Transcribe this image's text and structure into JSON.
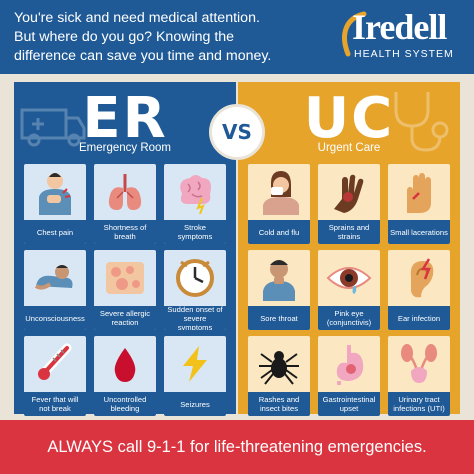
{
  "header": {
    "lines": [
      "You're sick and need medical attention.",
      "But where do you go? Knowing the",
      "difference can save you time and money."
    ]
  },
  "logo": {
    "word": "Iredell",
    "subtitle": "Health System"
  },
  "vs_label": "VS",
  "er": {
    "title": "ER",
    "subtitle": "Emergency Room",
    "items": [
      {
        "label": "Chest pain",
        "icon": "chest-pain-icon"
      },
      {
        "label": "Shortness of breath",
        "icon": "lungs-icon"
      },
      {
        "label": "Stroke symptoms",
        "icon": "brain-icon"
      },
      {
        "label": "Unconsciousness",
        "icon": "fainted-person-icon"
      },
      {
        "label": "Severe allergic reaction",
        "icon": "rash-icon"
      },
      {
        "label": "Sudden onset of severe symptoms",
        "icon": "clock-icon"
      },
      {
        "label": "Fever that will not break",
        "icon": "thermometer-icon"
      },
      {
        "label": "Uncontrolled bleeding",
        "icon": "blood-drop-icon"
      },
      {
        "label": "Seizures",
        "icon": "lightning-icon"
      }
    ]
  },
  "uc": {
    "title": "UC",
    "subtitle": "Urgent Care",
    "items": [
      {
        "label": "Cold and flu",
        "icon": "sneezing-person-icon"
      },
      {
        "label": "Sprains and strains",
        "icon": "injured-hand-icon"
      },
      {
        "label": "Small lacerations",
        "icon": "cut-hand-icon"
      },
      {
        "label": "Sore throat",
        "icon": "sore-throat-icon"
      },
      {
        "label": "Pink eye (conjunctivis)",
        "icon": "eye-icon"
      },
      {
        "label": "Ear infection",
        "icon": "ear-icon"
      },
      {
        "label": "Rashes and insect bites",
        "icon": "spider-icon"
      },
      {
        "label": "Gastrointestinal upset",
        "icon": "stomach-icon"
      },
      {
        "label": "Urinary tract infections (UTI)",
        "icon": "urinary-tract-icon"
      }
    ]
  },
  "footer": {
    "text": "ALWAYS call 9-1-1 for life-threatening emergencies."
  },
  "colors": {
    "blue": "#1f5a96",
    "gold": "#e6a42b",
    "red": "#d9343f",
    "bg": "#e9e3d8"
  }
}
